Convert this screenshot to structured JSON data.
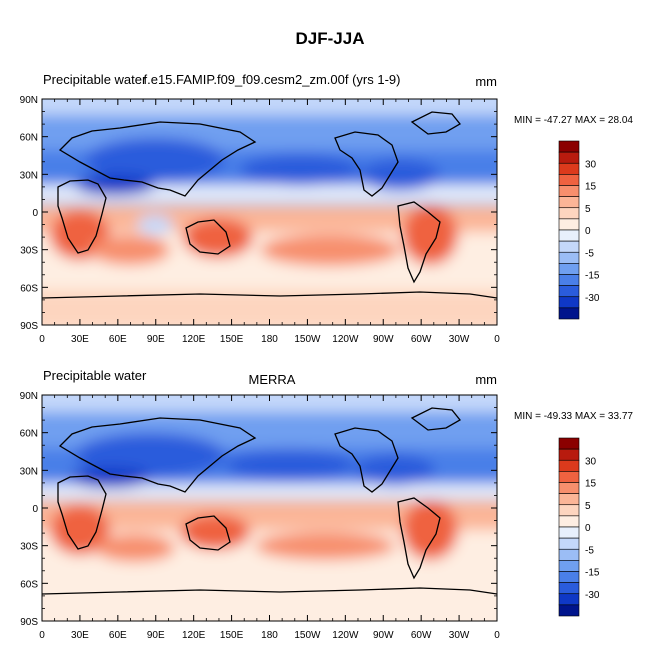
{
  "figure_title": "DJF-JJA",
  "chart_data": [
    {
      "type": "heatmap",
      "panel": "model",
      "title_left": "Precipitable water",
      "title_center": "f.e15.FAMIP.f09_f09.cesm2_zm.00f (yrs 1-9)",
      "units": "mm",
      "stats": "MIN = -47.27 MAX =  28.04",
      "min": -47.27,
      "max": 28.04,
      "xlim": [
        0,
        360
      ],
      "ylim": [
        -90,
        90
      ],
      "x_tick_labels": [
        "0",
        "30E",
        "60E",
        "90E",
        "120E",
        "150E",
        "180",
        "150W",
        "120W",
        "90W",
        "60W",
        "30W",
        "0"
      ],
      "y_tick_labels": [
        "90N",
        "60N",
        "30N",
        "0",
        "30S",
        "60S",
        "90S"
      ]
    },
    {
      "type": "heatmap",
      "panel": "observations",
      "title_left": "Precipitable water",
      "title_center": "MERRA",
      "units": "mm",
      "stats": "MIN = -49.33 MAX =  33.77",
      "min": -49.33,
      "max": 33.77,
      "xlim": [
        0,
        360
      ],
      "ylim": [
        -90,
        90
      ],
      "x_tick_labels": [
        "0",
        "30E",
        "60E",
        "90E",
        "120E",
        "150E",
        "180",
        "150W",
        "120W",
        "90W",
        "60W",
        "30W",
        "0"
      ],
      "y_tick_labels": [
        "90N",
        "60N",
        "30N",
        "0",
        "30S",
        "60S",
        "90S"
      ]
    }
  ],
  "colorbar": {
    "levels": [
      -35,
      -30,
      -25,
      -20,
      -15,
      -10,
      -5,
      -2,
      2,
      5,
      10,
      15,
      20,
      25,
      30,
      35
    ],
    "labels": [
      "30",
      "15",
      "5",
      "0",
      "-5",
      "-15",
      "-30"
    ],
    "colors": [
      "#8b0000",
      "#b81b0e",
      "#dc3a1c",
      "#ef6240",
      "#f78f6d",
      "#fbb597",
      "#fdd5bf",
      "#feeee2",
      "#e8f0fc",
      "#c4d8fa",
      "#9bbdf5",
      "#6f9ff0",
      "#4a7fe8",
      "#2a5cdc",
      "#0f38c6",
      "#00148c"
    ]
  }
}
